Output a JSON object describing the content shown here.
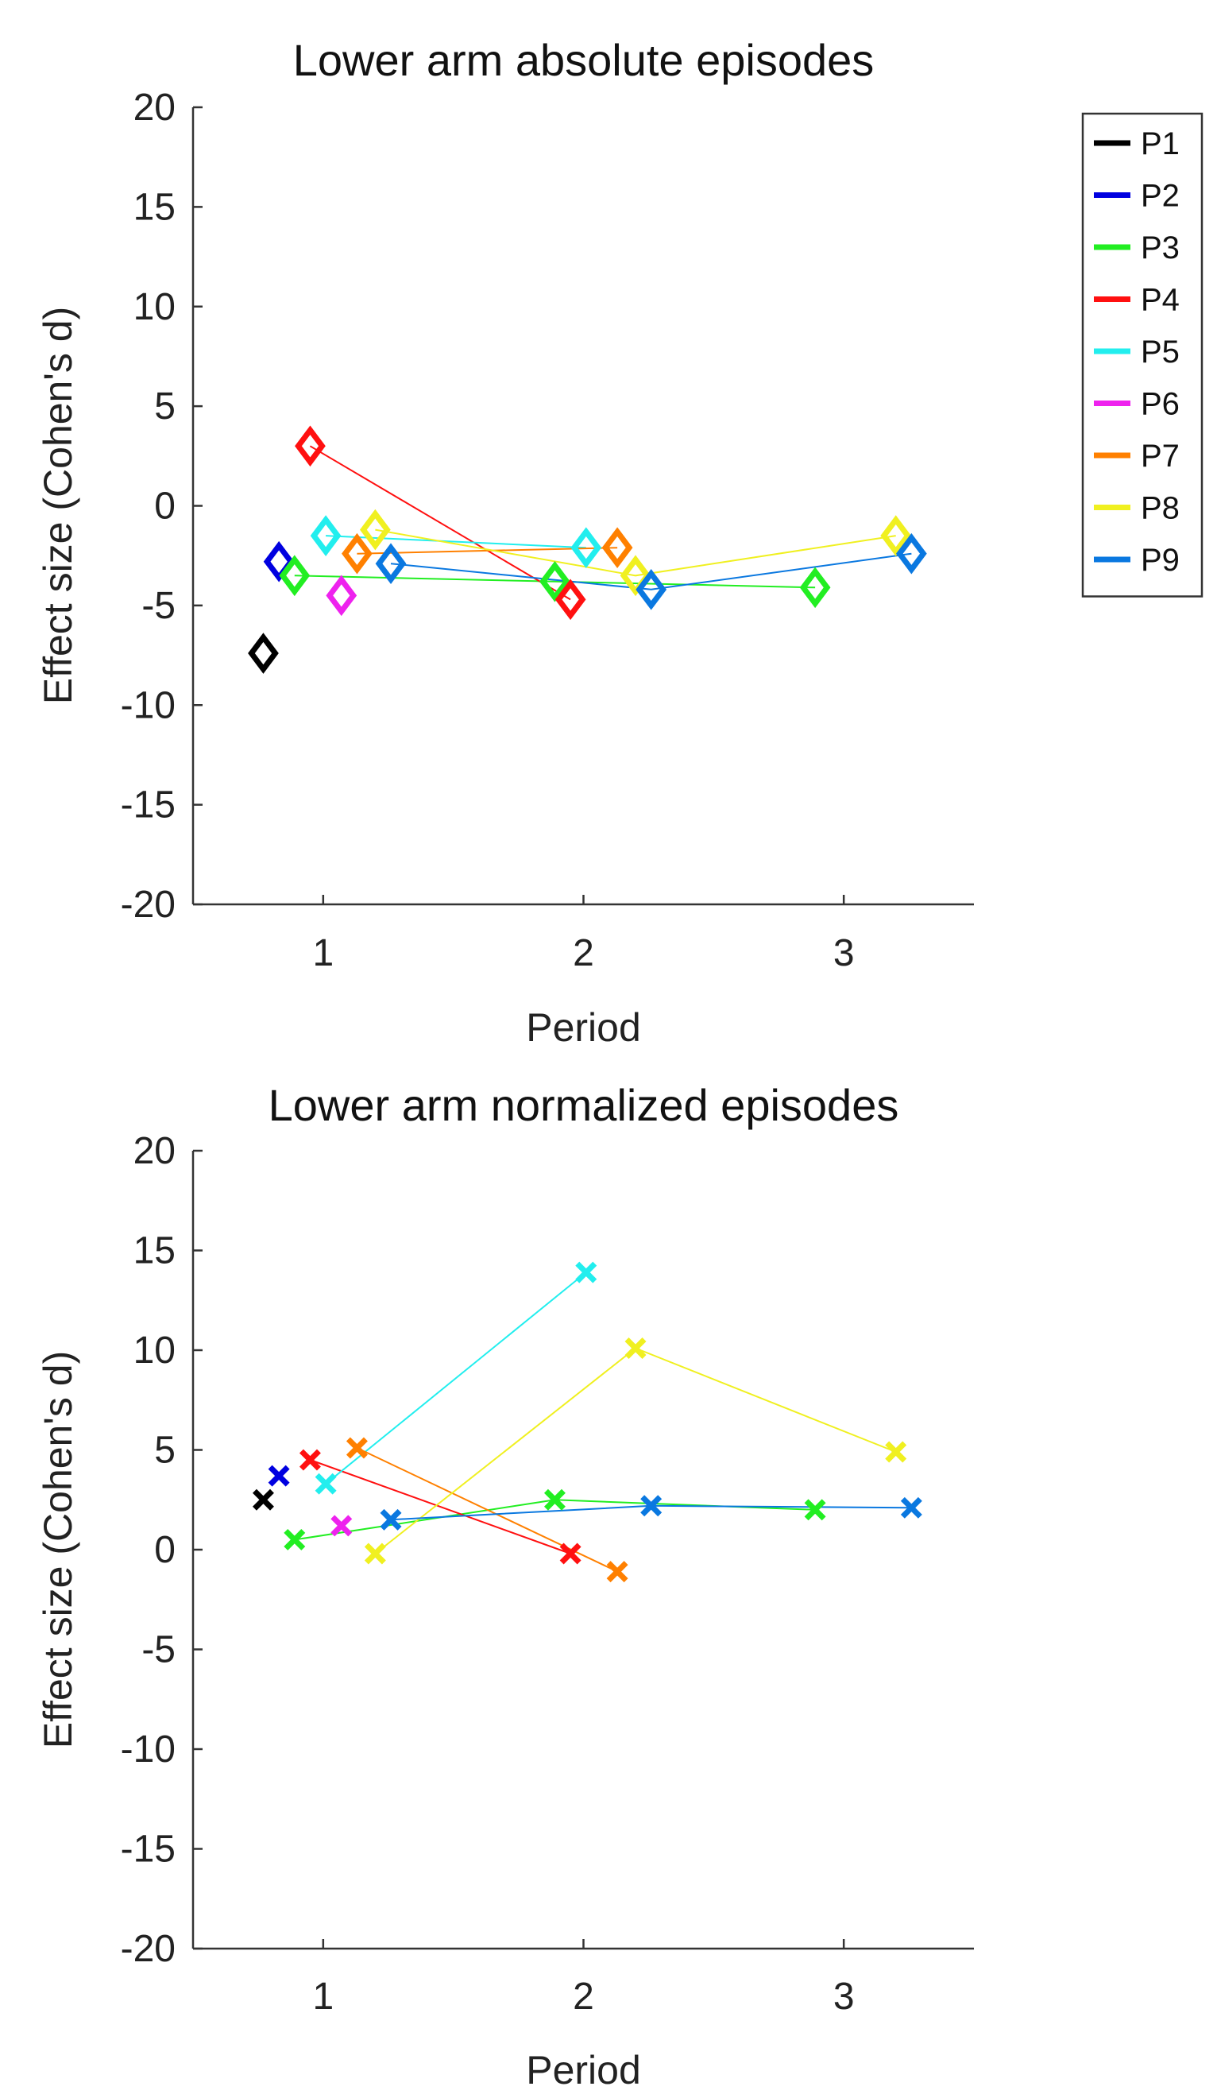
{
  "chart_data": [
    {
      "type": "line",
      "title": "Lower arm absolute episodes",
      "xlabel": "Period",
      "ylabel": "Effect size (Cohen's d)",
      "xlim": [
        0.5,
        3.5
      ],
      "ylim": [
        -20,
        20
      ],
      "xticks": [
        "1",
        "2",
        "3"
      ],
      "yticks": [
        "20",
        "15",
        "10",
        "5",
        "0",
        "-5",
        "-10",
        "-15",
        "-20"
      ],
      "marker": "diamond",
      "series": [
        {
          "name": "P1",
          "color": "#000000",
          "points": [
            [
              0.77,
              -7.4
            ]
          ]
        },
        {
          "name": "P2",
          "color": "#0000e0",
          "points": [
            [
              0.83,
              -2.8
            ]
          ]
        },
        {
          "name": "P3",
          "color": "#22ee22",
          "points": [
            [
              0.89,
              -3.5
            ],
            [
              1.89,
              -3.8
            ],
            [
              2.89,
              -4.1
            ]
          ]
        },
        {
          "name": "P4",
          "color": "#ff1010",
          "points": [
            [
              0.95,
              3.0
            ],
            [
              1.95,
              -4.7
            ]
          ]
        },
        {
          "name": "P5",
          "color": "#22eeee",
          "points": [
            [
              1.01,
              -1.5
            ],
            [
              2.01,
              -2.1
            ]
          ]
        },
        {
          "name": "P6",
          "color": "#ee22ee",
          "points": [
            [
              1.07,
              -4.5
            ]
          ]
        },
        {
          "name": "P7",
          "color": "#ff8000",
          "points": [
            [
              1.13,
              -2.4
            ],
            [
              2.13,
              -2.1
            ]
          ]
        },
        {
          "name": "P8",
          "color": "#f0f020",
          "points": [
            [
              1.2,
              -1.2
            ],
            [
              2.2,
              -3.5
            ],
            [
              3.2,
              -1.5
            ]
          ]
        },
        {
          "name": "P9",
          "color": "#0a78e0",
          "points": [
            [
              1.26,
              -2.9
            ],
            [
              2.26,
              -4.2
            ],
            [
              3.26,
              -2.4
            ]
          ]
        }
      ]
    },
    {
      "type": "line",
      "title": "Lower arm normalized episodes",
      "xlabel": "Period",
      "ylabel": "Effect size (Cohen's d)",
      "xlim": [
        0.5,
        3.5
      ],
      "ylim": [
        -20,
        20
      ],
      "xticks": [
        "1",
        "2",
        "3"
      ],
      "yticks": [
        "20",
        "15",
        "10",
        "5",
        "0",
        "-5",
        "-10",
        "-15",
        "-20"
      ],
      "marker": "x",
      "series": [
        {
          "name": "P1",
          "color": "#000000",
          "points": [
            [
              0.77,
              2.5
            ]
          ]
        },
        {
          "name": "P2",
          "color": "#0000e0",
          "points": [
            [
              0.83,
              3.7
            ]
          ]
        },
        {
          "name": "P3",
          "color": "#22ee22",
          "points": [
            [
              0.89,
              0.5
            ],
            [
              1.89,
              2.5
            ],
            [
              2.89,
              2.0
            ]
          ]
        },
        {
          "name": "P4",
          "color": "#ff1010",
          "points": [
            [
              0.95,
              4.5
            ],
            [
              1.95,
              -0.2
            ]
          ]
        },
        {
          "name": "P5",
          "color": "#22eeee",
          "points": [
            [
              1.01,
              3.3
            ],
            [
              2.01,
              13.9
            ]
          ]
        },
        {
          "name": "P6",
          "color": "#ee22ee",
          "points": [
            [
              1.07,
              1.2
            ]
          ]
        },
        {
          "name": "P7",
          "color": "#ff8000",
          "points": [
            [
              1.13,
              5.1
            ],
            [
              2.13,
              -1.1
            ]
          ]
        },
        {
          "name": "P8",
          "color": "#f0f020",
          "points": [
            [
              1.2,
              -0.2
            ],
            [
              2.2,
              10.1
            ],
            [
              3.2,
              4.9
            ]
          ]
        },
        {
          "name": "P9",
          "color": "#0a78e0",
          "points": [
            [
              1.26,
              1.5
            ],
            [
              2.26,
              2.2
            ],
            [
              3.26,
              2.1
            ]
          ]
        }
      ]
    }
  ],
  "legend": {
    "placement": "top-right",
    "entries": [
      "P1",
      "P2",
      "P3",
      "P4",
      "P5",
      "P6",
      "P7",
      "P8",
      "P9"
    ]
  }
}
